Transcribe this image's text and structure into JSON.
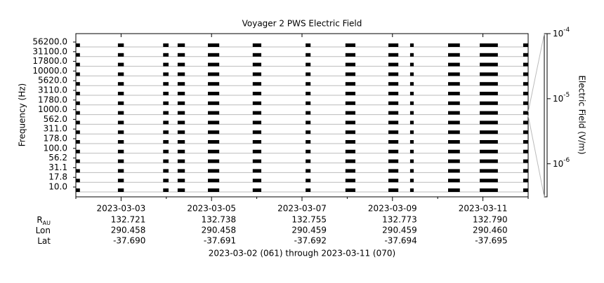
{
  "chart_data": {
    "type": "spectrogram",
    "title": "Voyager 2 PWS Electric Field",
    "y_label": "Frequency (Hz)",
    "categories": [
      "56200.0",
      "31100.0",
      "17800.0",
      "10000.0",
      "5620.0",
      "3110.0",
      "1780.0",
      "1000.0",
      "562.0",
      "311.0",
      "178.0",
      "100.0",
      "56.2",
      "31.1",
      "17.8",
      "10.0"
    ],
    "xlim": [
      61,
      71
    ],
    "xticks": [
      {
        "value": 62,
        "label": "2023-03-03"
      },
      {
        "value": 64,
        "label": "2023-03-05"
      },
      {
        "value": 66,
        "label": "2023-03-07"
      },
      {
        "value": 68,
        "label": "2023-03-09"
      },
      {
        "value": 70,
        "label": "2023-03-11"
      }
    ],
    "minor_xticks": [
      61,
      63,
      65,
      67,
      69,
      71
    ],
    "segments": [
      [
        61.0,
        61.09
      ],
      [
        61.93,
        62.06
      ],
      [
        62.93,
        63.05
      ],
      [
        63.25,
        63.41
      ],
      [
        63.92,
        64.17
      ],
      [
        64.91,
        65.1
      ],
      [
        66.08,
        66.19
      ],
      [
        66.96,
        67.18
      ],
      [
        67.91,
        68.13
      ],
      [
        68.39,
        68.47
      ],
      [
        69.23,
        69.49
      ],
      [
        69.93,
        70.33
      ],
      [
        70.89,
        71.0
      ]
    ],
    "color": "#000000",
    "grid": true,
    "colorbar": {
      "label": "Electric Field (V/m)",
      "log": true,
      "zlim": [
        3.1e-07,
        0.0001
      ],
      "ticks": [
        {
          "value": 0.0001,
          "label": "10",
          "exp": "-4"
        },
        {
          "value": 1e-05,
          "label": "10",
          "exp": "-5"
        },
        {
          "value": 1e-06,
          "label": "10",
          "exp": "-6"
        }
      ]
    },
    "ephemeris": [
      {
        "label": "R",
        "sub": "AU",
        "values": [
          "132.721",
          "132.738",
          "132.755",
          "132.773",
          "132.790"
        ]
      },
      {
        "label": "Lon",
        "values": [
          "290.458",
          "290.458",
          "290.459",
          "290.459",
          "290.460"
        ]
      },
      {
        "label": "Lat",
        "values": [
          "-37.690",
          "-37.691",
          "-37.692",
          "-37.694",
          "-37.695"
        ]
      }
    ],
    "footer": "2023-03-02 (061) through 2023-03-11 (070)"
  }
}
